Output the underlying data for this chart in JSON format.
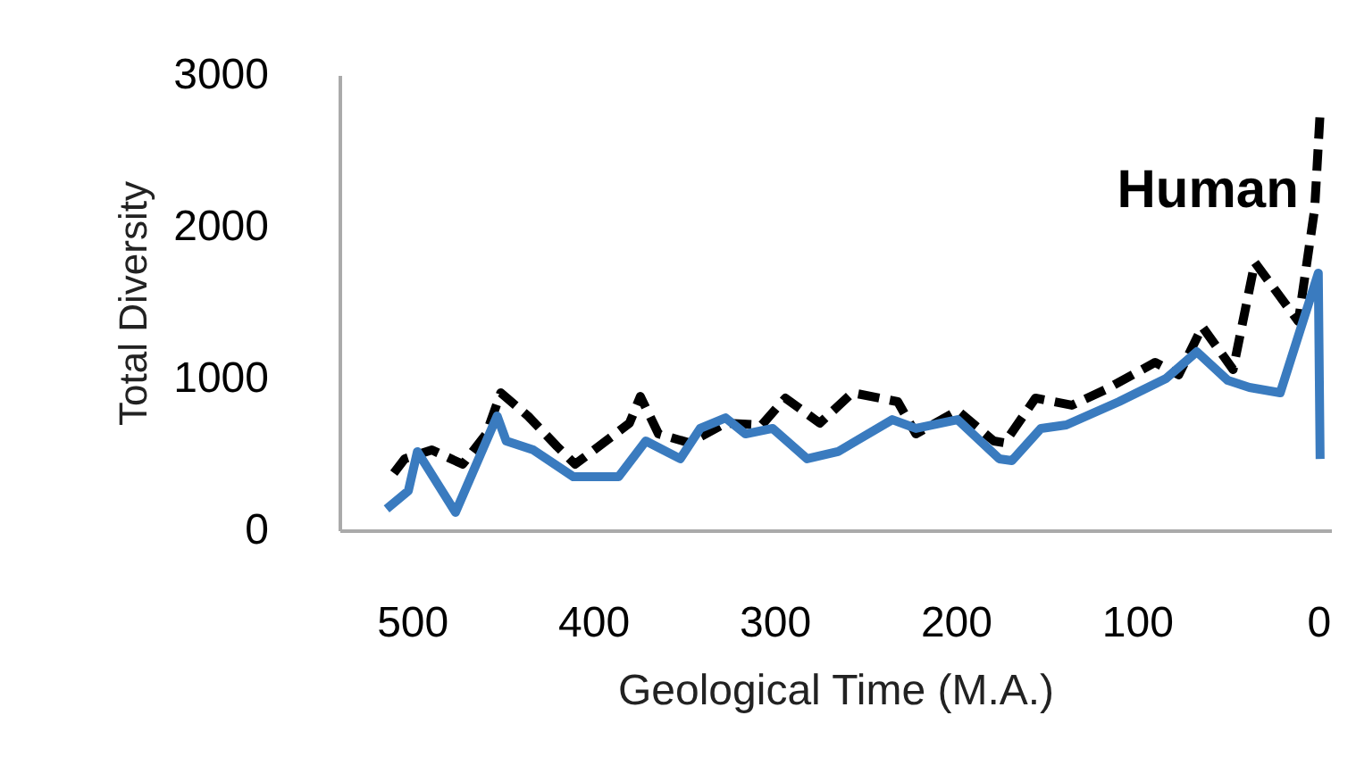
{
  "chart_data": {
    "type": "line",
    "xlabel": "Geological Time (M.A.)",
    "ylabel": "Total Diversity",
    "xlim": [
      540,
      -7
    ],
    "xticks": [
      500,
      400,
      300,
      200,
      100,
      0
    ],
    "ylim": [
      0,
      3000
    ],
    "yticks": [
      0,
      1000,
      2000,
      3000
    ],
    "grid": false,
    "marker": "none",
    "series": [
      {
        "name": "Human",
        "color": "#000000",
        "line_style": "dashed",
        "x": [
          510,
          504,
          489,
          472,
          459,
          451,
          436,
          420,
          410,
          393,
          380,
          374,
          364,
          347,
          327,
          307,
          294,
          275,
          257,
          232,
          222,
          199,
          179,
          173,
          156,
          136,
          117,
          90,
          77,
          64,
          47,
          35,
          11,
          2,
          -1
        ],
        "values": [
          376,
          471,
          529,
          435,
          635,
          906,
          753,
          553,
          435,
          588,
          706,
          882,
          635,
          576,
          706,
          694,
          871,
          706,
          906,
          847,
          635,
          788,
          588,
          576,
          871,
          824,
          929,
          1106,
          1024,
          1341,
          1059,
          1765,
          1376,
          2118,
          2750
        ]
      },
      {
        "color": "#3a7bbf",
        "line_style": "solid",
        "x": [
          514,
          502,
          497,
          476,
          453,
          448,
          433,
          411,
          386,
          371,
          352,
          341,
          327,
          316,
          301,
          282,
          265,
          255,
          235,
          222,
          199,
          176,
          169,
          153,
          139,
          110,
          84,
          67,
          50,
          38,
          21,
          0,
          -1
        ],
        "values": [
          141,
          259,
          518,
          118,
          753,
          588,
          529,
          353,
          353,
          588,
          471,
          671,
          741,
          635,
          671,
          471,
          518,
          588,
          729,
          671,
          729,
          471,
          459,
          671,
          694,
          847,
          1000,
          1176,
          988,
          941,
          906,
          1694,
          470
        ]
      }
    ]
  }
}
